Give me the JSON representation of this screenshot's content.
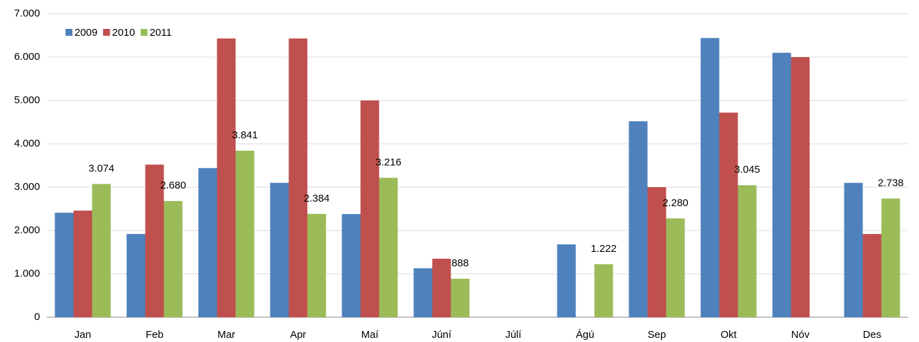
{
  "chart_data": {
    "type": "bar",
    "categories": [
      "Jan",
      "Feb",
      "Mar",
      "Apr",
      "Maí",
      "Júní",
      "Júlí",
      "Ágú",
      "Sep",
      "Okt",
      "Nóv",
      "Des"
    ],
    "series": [
      {
        "name": "2009",
        "color": "#4f81bd",
        "values": [
          2410,
          1920,
          3440,
          3100,
          2380,
          1130,
          null,
          1680,
          4520,
          6440,
          6100,
          3100
        ]
      },
      {
        "name": "2010",
        "color": "#c0504d",
        "values": [
          2460,
          3520,
          6430,
          6430,
          5000,
          1350,
          null,
          null,
          3000,
          4720,
          6000,
          1920
        ]
      },
      {
        "name": "2011",
        "color": "#9bbb59",
        "values": [
          3074,
          2680,
          3841,
          2384,
          3216,
          888,
          null,
          1222,
          2280,
          3045,
          null,
          2738
        ],
        "value_labels": [
          "3.074",
          "2.680",
          "3.841",
          "2.384",
          "3.216",
          "888",
          null,
          "1.222",
          "2.280",
          "3.045",
          null,
          "2.738"
        ]
      }
    ],
    "ylim": [
      0,
      7000
    ],
    "yticks": [
      0,
      {
        "value": 1000,
        "label": "1.000"
      },
      {
        "value": 2000,
        "label": "2.000"
      },
      {
        "value": 3000,
        "label": "3.000"
      },
      {
        "value": 4000,
        "label": "4.000"
      },
      {
        "value": 5000,
        "label": "5.000"
      },
      {
        "value": 6000,
        "label": "6.000"
      },
      {
        "value": 7000,
        "label": "7.000"
      }
    ],
    "grid": true,
    "legend": "top-left"
  }
}
